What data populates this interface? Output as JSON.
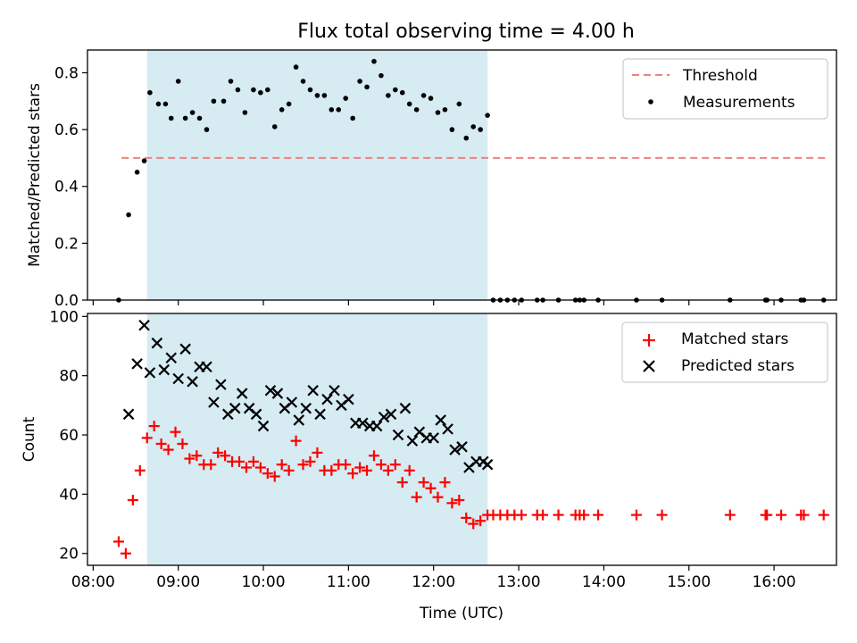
{
  "figure": {
    "title": "Flux total observing time = 4.00 h",
    "xlabel": "Time (UTC)"
  },
  "chart_data": [
    {
      "type": "scatter",
      "title": "Flux total observing time = 4.00 h",
      "ylabel": "Matched/Predicted stars",
      "xlim": [
        "07:56",
        "16:44"
      ],
      "ylim": [
        0,
        0.88
      ],
      "yticks": [
        "0.0",
        "0.2",
        "0.4",
        "0.6",
        "0.8"
      ],
      "shaded_span": [
        "08:38",
        "12:38"
      ],
      "legend_position": "upper right",
      "threshold": {
        "name": "Threshold",
        "value": 0.5,
        "x_range": [
          "08:20",
          "16:38"
        ],
        "color": "#f08080"
      },
      "series": [
        {
          "name": "Measurements",
          "marker": "dot",
          "color": "#000000",
          "points": [
            [
              "08:18",
              0.0
            ],
            [
              "08:25",
              0.3
            ],
            [
              "08:31",
              0.45
            ],
            [
              "08:36",
              0.49
            ],
            [
              "08:40",
              0.73
            ],
            [
              "08:46",
              0.69
            ],
            [
              "08:51",
              0.69
            ],
            [
              "08:55",
              0.64
            ],
            [
              "09:00",
              0.77
            ],
            [
              "09:05",
              0.64
            ],
            [
              "09:10",
              0.66
            ],
            [
              "09:15",
              0.64
            ],
            [
              "09:20",
              0.6
            ],
            [
              "09:25",
              0.7
            ],
            [
              "09:32",
              0.7
            ],
            [
              "09:37",
              0.77
            ],
            [
              "09:42",
              0.74
            ],
            [
              "09:47",
              0.66
            ],
            [
              "09:53",
              0.74
            ],
            [
              "09:58",
              0.73
            ],
            [
              "10:03",
              0.74
            ],
            [
              "10:08",
              0.61
            ],
            [
              "10:13",
              0.67
            ],
            [
              "10:18",
              0.69
            ],
            [
              "10:23",
              0.82
            ],
            [
              "10:28",
              0.77
            ],
            [
              "10:33",
              0.74
            ],
            [
              "10:38",
              0.72
            ],
            [
              "10:43",
              0.72
            ],
            [
              "10:48",
              0.67
            ],
            [
              "10:53",
              0.67
            ],
            [
              "10:58",
              0.71
            ],
            [
              "11:03",
              0.64
            ],
            [
              "11:08",
              0.77
            ],
            [
              "11:13",
              0.75
            ],
            [
              "11:18",
              0.84
            ],
            [
              "11:23",
              0.79
            ],
            [
              "11:28",
              0.72
            ],
            [
              "11:33",
              0.74
            ],
            [
              "11:38",
              0.73
            ],
            [
              "11:43",
              0.69
            ],
            [
              "11:48",
              0.67
            ],
            [
              "11:53",
              0.72
            ],
            [
              "11:58",
              0.71
            ],
            [
              "12:03",
              0.66
            ],
            [
              "12:08",
              0.67
            ],
            [
              "12:13",
              0.6
            ],
            [
              "12:18",
              0.69
            ],
            [
              "12:23",
              0.57
            ],
            [
              "12:28",
              0.61
            ],
            [
              "12:33",
              0.6
            ],
            [
              "12:38",
              0.65
            ],
            [
              "12:42",
              0.0
            ],
            [
              "12:47",
              0.0
            ],
            [
              "12:52",
              0.0
            ],
            [
              "12:57",
              0.0
            ],
            [
              "13:02",
              0.0
            ],
            [
              "13:13",
              0.0
            ],
            [
              "13:17",
              0.0
            ],
            [
              "13:28",
              0.0
            ],
            [
              "13:40",
              0.0
            ],
            [
              "13:43",
              0.0
            ],
            [
              "13:46",
              0.0
            ],
            [
              "13:56",
              0.0
            ],
            [
              "14:23",
              0.0
            ],
            [
              "14:41",
              0.0
            ],
            [
              "15:29",
              0.0
            ],
            [
              "15:54",
              0.0
            ],
            [
              "15:55",
              0.0
            ],
            [
              "16:05",
              0.0
            ],
            [
              "16:19",
              0.0
            ],
            [
              "16:21",
              0.0
            ],
            [
              "16:35",
              0.0
            ]
          ]
        }
      ]
    },
    {
      "type": "scatter",
      "ylabel": "Count",
      "xlabel": "Time (UTC)",
      "xlim": [
        "07:56",
        "16:44"
      ],
      "ylim": [
        16,
        101
      ],
      "yticks": [
        "20",
        "40",
        "60",
        "80",
        "100"
      ],
      "xticks": [
        "08:00",
        "09:00",
        "10:00",
        "11:00",
        "12:00",
        "13:00",
        "14:00",
        "15:00",
        "16:00"
      ],
      "shaded_span": [
        "08:38",
        "12:38"
      ],
      "legend_position": "upper right",
      "series": [
        {
          "name": "Matched stars",
          "marker": "plus",
          "color": "#ff0000",
          "points": [
            [
              "08:18",
              24
            ],
            [
              "08:23",
              20
            ],
            [
              "08:28",
              38
            ],
            [
              "08:33",
              48
            ],
            [
              "08:38",
              59
            ],
            [
              "08:43",
              63
            ],
            [
              "08:48",
              57
            ],
            [
              "08:53",
              55
            ],
            [
              "08:58",
              61
            ],
            [
              "09:03",
              57
            ],
            [
              "09:08",
              52
            ],
            [
              "09:13",
              53
            ],
            [
              "09:18",
              50
            ],
            [
              "09:23",
              50
            ],
            [
              "09:28",
              54
            ],
            [
              "09:33",
              53
            ],
            [
              "09:38",
              51
            ],
            [
              "09:43",
              51
            ],
            [
              "09:48",
              49
            ],
            [
              "09:53",
              51
            ],
            [
              "09:58",
              49
            ],
            [
              "10:03",
              47
            ],
            [
              "10:08",
              46
            ],
            [
              "10:13",
              50
            ],
            [
              "10:18",
              48
            ],
            [
              "10:23",
              58
            ],
            [
              "10:28",
              50
            ],
            [
              "10:33",
              51
            ],
            [
              "10:38",
              54
            ],
            [
              "10:43",
              48
            ],
            [
              "10:48",
              48
            ],
            [
              "10:53",
              50
            ],
            [
              "10:58",
              50
            ],
            [
              "11:03",
              47
            ],
            [
              "11:08",
              49
            ],
            [
              "11:13",
              48
            ],
            [
              "11:18",
              53
            ],
            [
              "11:23",
              50
            ],
            [
              "11:28",
              48
            ],
            [
              "11:33",
              50
            ],
            [
              "11:38",
              44
            ],
            [
              "11:43",
              48
            ],
            [
              "11:48",
              39
            ],
            [
              "11:53",
              44
            ],
            [
              "11:58",
              42
            ],
            [
              "12:03",
              39
            ],
            [
              "12:08",
              44
            ],
            [
              "12:13",
              37
            ],
            [
              "12:18",
              38
            ],
            [
              "12:23",
              32
            ],
            [
              "12:28",
              30
            ],
            [
              "12:33",
              31
            ],
            [
              "12:38",
              33
            ],
            [
              "12:42",
              33
            ],
            [
              "12:47",
              33
            ],
            [
              "12:52",
              33
            ],
            [
              "12:57",
              33
            ],
            [
              "13:02",
              33
            ],
            [
              "13:13",
              33
            ],
            [
              "13:17",
              33
            ],
            [
              "13:28",
              33
            ],
            [
              "13:40",
              33
            ],
            [
              "13:43",
              33
            ],
            [
              "13:46",
              33
            ],
            [
              "13:56",
              33
            ],
            [
              "14:23",
              33
            ],
            [
              "14:41",
              33
            ],
            [
              "15:29",
              33
            ],
            [
              "15:54",
              33
            ],
            [
              "15:55",
              33
            ],
            [
              "16:05",
              33
            ],
            [
              "16:19",
              33
            ],
            [
              "16:21",
              33
            ],
            [
              "16:35",
              33
            ]
          ]
        },
        {
          "name": "Predicted stars",
          "marker": "x",
          "color": "#000000",
          "points": [
            [
              "08:25",
              67
            ],
            [
              "08:31",
              84
            ],
            [
              "08:36",
              97
            ],
            [
              "08:40",
              81
            ],
            [
              "08:45",
              91
            ],
            [
              "08:50",
              82
            ],
            [
              "08:55",
              86
            ],
            [
              "09:00",
              79
            ],
            [
              "09:05",
              89
            ],
            [
              "09:10",
              78
            ],
            [
              "09:15",
              83
            ],
            [
              "09:20",
              83
            ],
            [
              "09:25",
              71
            ],
            [
              "09:30",
              77
            ],
            [
              "09:35",
              67
            ],
            [
              "09:40",
              69
            ],
            [
              "09:45",
              74
            ],
            [
              "09:50",
              69
            ],
            [
              "09:55",
              67
            ],
            [
              "10:00",
              63
            ],
            [
              "10:05",
              75
            ],
            [
              "10:10",
              74
            ],
            [
              "10:15",
              69
            ],
            [
              "10:20",
              71
            ],
            [
              "10:25",
              65
            ],
            [
              "10:30",
              69
            ],
            [
              "10:35",
              75
            ],
            [
              "10:40",
              67
            ],
            [
              "10:45",
              72
            ],
            [
              "10:50",
              75
            ],
            [
              "10:55",
              70
            ],
            [
              "11:00",
              72
            ],
            [
              "11:05",
              64
            ],
            [
              "11:10",
              64
            ],
            [
              "11:15",
              63
            ],
            [
              "11:20",
              63
            ],
            [
              "11:25",
              66
            ],
            [
              "11:30",
              67
            ],
            [
              "11:35",
              60
            ],
            [
              "11:40",
              69
            ],
            [
              "11:45",
              58
            ],
            [
              "11:50",
              61
            ],
            [
              "11:55",
              59
            ],
            [
              "12:00",
              59
            ],
            [
              "12:05",
              65
            ],
            [
              "12:10",
              62
            ],
            [
              "12:15",
              55
            ],
            [
              "12:20",
              56
            ],
            [
              "12:25",
              49
            ],
            [
              "12:30",
              51
            ],
            [
              "12:35",
              51
            ],
            [
              "12:38",
              50
            ]
          ]
        }
      ]
    }
  ]
}
